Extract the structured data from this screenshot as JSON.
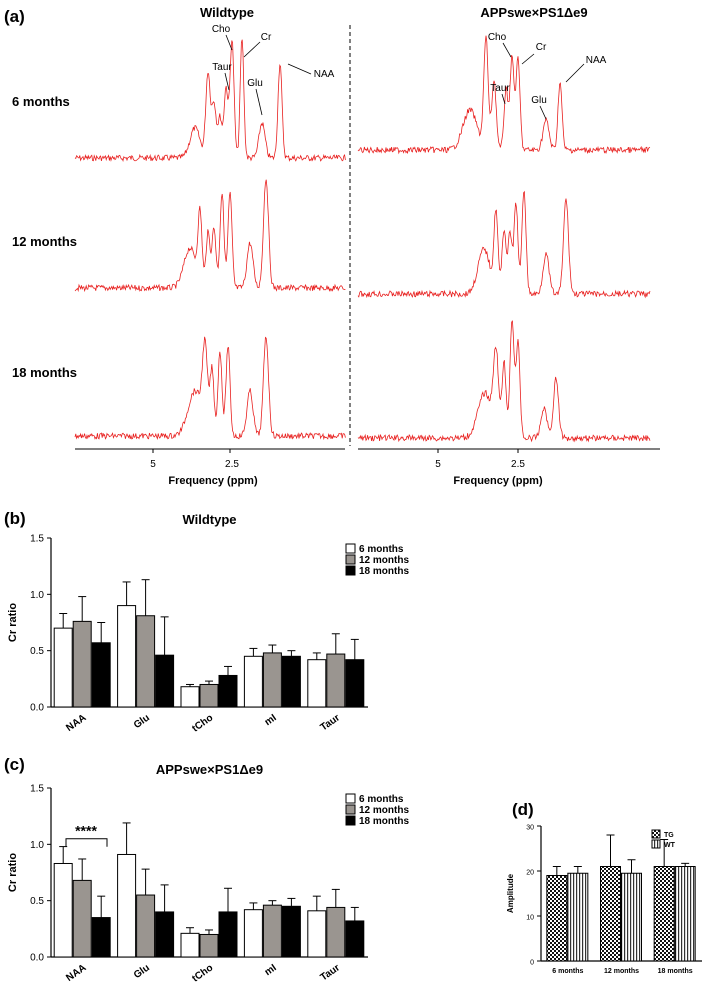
{
  "colors": {
    "spectrum": "#e8201f",
    "bar_6_months": "#ffffff",
    "bar_12_months": "#9a9590",
    "bar_18_months": "#000000",
    "axis": "#000000"
  },
  "panel_labels": {
    "a": "(a)",
    "b": "(b)",
    "c": "(c)",
    "d": "(d)"
  },
  "panel_a": {
    "titles": {
      "wildtype": "Wildtype",
      "transgenic": "APPswe×PS1Δe9"
    },
    "ages": [
      "6 months",
      "12 months",
      "18 months"
    ],
    "peak_labels": [
      "Cho",
      "Taur",
      "Cr",
      "Glu",
      "NAA"
    ],
    "x_ticks": [
      "5",
      "2.5"
    ],
    "xlabel": "Frequency (ppm)"
  },
  "chart_data": [
    {
      "panel": "a",
      "type": "line",
      "title": "Wildtype",
      "xlabel": "Frequency (ppm)",
      "x_ticks": [
        "5",
        "2.5"
      ],
      "rows": [
        "6 months",
        "12 months",
        "18 months"
      ],
      "peaks_ppm": {
        "Cho": 3.2,
        "Taur": 3.4,
        "Cr": 3.0,
        "Glu": 2.35,
        "NAA": 2.0
      }
    },
    {
      "panel": "a",
      "type": "line",
      "title": "APPswe×PS1Δe9",
      "xlabel": "Frequency (ppm)",
      "x_ticks": [
        "5",
        "2.5"
      ],
      "rows": [
        "6 months",
        "12 months",
        "18 months"
      ],
      "peaks_ppm": {
        "Cho": 3.2,
        "Taur": 3.4,
        "Cr": 3.0,
        "Glu": 2.35,
        "NAA": 2.0
      }
    },
    {
      "panel": "b",
      "type": "bar",
      "title": "Wildtype",
      "ylabel": "Cr ratio",
      "ylim": [
        0,
        1.5
      ],
      "yticks": [
        "0.0",
        "0.5",
        "1.0",
        "1.5"
      ],
      "categories": [
        "NAA",
        "Glu",
        "tCho",
        "mI",
        "Taur"
      ],
      "series": [
        {
          "name": "6 months",
          "values": [
            0.7,
            0.9,
            0.18,
            0.45,
            0.42
          ],
          "errors": [
            0.13,
            0.21,
            0.02,
            0.07,
            0.06
          ]
        },
        {
          "name": "12 months",
          "values": [
            0.76,
            0.81,
            0.2,
            0.48,
            0.47
          ],
          "errors": [
            0.22,
            0.32,
            0.03,
            0.07,
            0.18
          ]
        },
        {
          "name": "18 months",
          "values": [
            0.57,
            0.46,
            0.28,
            0.45,
            0.42
          ],
          "errors": [
            0.18,
            0.34,
            0.08,
            0.05,
            0.18
          ]
        }
      ],
      "legend": "top-right"
    },
    {
      "panel": "c",
      "type": "bar",
      "title": "APPswe×PS1Δe9",
      "ylabel": "Cr ratio",
      "ylim": [
        0,
        1.5
      ],
      "yticks": [
        "0.0",
        "0.5",
        "1.0",
        "1.5"
      ],
      "categories": [
        "NAA",
        "Glu",
        "tCho",
        "mI",
        "Taur"
      ],
      "series": [
        {
          "name": "6 months",
          "values": [
            0.83,
            0.91,
            0.21,
            0.42,
            0.41
          ],
          "errors": [
            0.15,
            0.28,
            0.05,
            0.06,
            0.13
          ]
        },
        {
          "name": "12 months",
          "values": [
            0.68,
            0.55,
            0.2,
            0.46,
            0.44
          ],
          "errors": [
            0.19,
            0.23,
            0.04,
            0.04,
            0.16
          ]
        },
        {
          "name": "18 months",
          "values": [
            0.35,
            0.4,
            0.4,
            0.45,
            0.32
          ],
          "errors": [
            0.19,
            0.24,
            0.21,
            0.07,
            0.12
          ]
        }
      ],
      "annotation": "****",
      "legend": "top-right"
    },
    {
      "panel": "d",
      "type": "bar",
      "ylabel": "Amplitude",
      "ylim": [
        0,
        30
      ],
      "yticks": [
        "0",
        "10",
        "20",
        "30"
      ],
      "categories": [
        "6 months",
        "12 months",
        "18 months"
      ],
      "series": [
        {
          "name": "TG",
          "values": [
            19.0,
            21.0,
            21.0
          ],
          "errors": [
            2.0,
            7.0,
            6.0
          ]
        },
        {
          "name": "WT",
          "values": [
            19.5,
            19.5,
            21.0
          ],
          "errors": [
            1.5,
            3.0,
            0.7
          ]
        }
      ],
      "legend": "top-right"
    }
  ]
}
